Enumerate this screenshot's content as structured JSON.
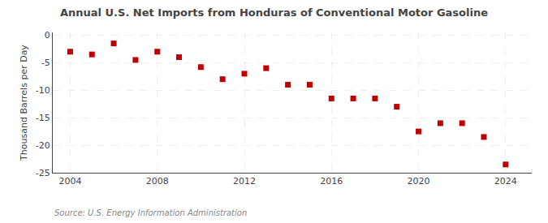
{
  "chart_data": {
    "type": "scatter",
    "title": "Annual U.S. Net Imports from Honduras of Conventional Motor Gasoline",
    "ylabel": "Thousand Barrels per Day",
    "annotations": [
      "Source: U.S. Energy Information Administration"
    ],
    "x": [
      2004,
      2005,
      2006,
      2007,
      2008,
      2009,
      2010,
      2011,
      2012,
      2013,
      2014,
      2015,
      2016,
      2017,
      2018,
      2019,
      2020,
      2021,
      2022,
      2023,
      2024
    ],
    "values": [
      -3.0,
      -3.5,
      -1.5,
      -4.5,
      -3.0,
      -4.0,
      -5.8,
      -8.0,
      -7.0,
      -6.0,
      -9.0,
      -9.0,
      -11.5,
      -11.5,
      -11.5,
      -13.0,
      -17.5,
      -16.0,
      -16.0,
      -18.5,
      -23.5
    ],
    "color": "#c00000",
    "marker": "square",
    "xlim": [
      2003.2,
      2025.2
    ],
    "xticks": [
      2004,
      2008,
      2012,
      2016,
      2020,
      2024
    ],
    "ylim": [
      -25,
      0.5
    ],
    "yticks": [
      0,
      -5,
      -10,
      -15,
      -20,
      -25
    ],
    "grid": true
  }
}
